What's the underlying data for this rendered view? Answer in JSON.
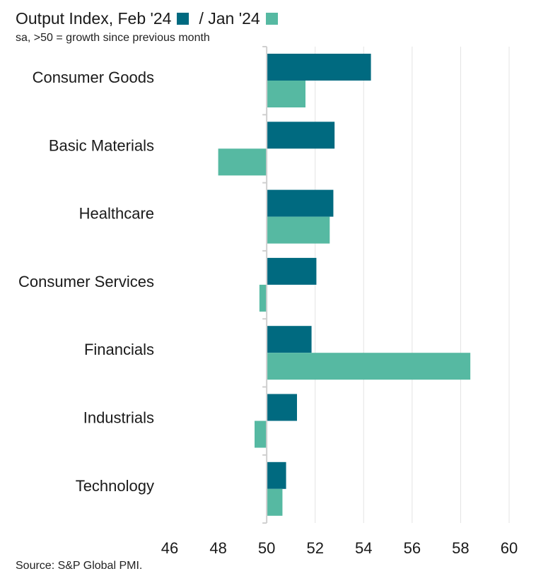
{
  "chart_data": {
    "type": "bar",
    "orientation": "horizontal",
    "title": "Output Index, Feb '24",
    "subtitle": "sa, >50 = growth since previous month",
    "source": "Source: S&P Global PMI.",
    "categories": [
      "Consumer Goods",
      "Basic Materials",
      "Healthcare",
      "Consumer Services",
      "Financials",
      "Industrials",
      "Technology"
    ],
    "series": [
      {
        "name": "Feb '24",
        "legend_label": "",
        "color": "#006a80",
        "values": [
          54.3,
          52.8,
          52.75,
          52.05,
          51.85,
          51.25,
          50.8
        ]
      },
      {
        "name": "Jan '24",
        "legend_label": "/ Jan '24",
        "color": "#56b9a2",
        "values": [
          51.6,
          48.0,
          52.6,
          49.7,
          58.4,
          49.5,
          50.65
        ]
      }
    ],
    "baseline": 50,
    "xlim": [
      45,
      61
    ],
    "xticks": [
      46,
      48,
      50,
      52,
      54,
      56,
      58,
      60
    ],
    "grid": true
  }
}
